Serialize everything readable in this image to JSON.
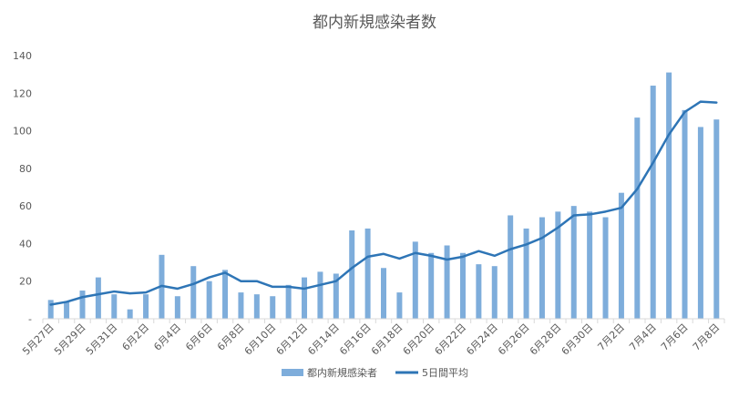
{
  "chart_data": {
    "type": "bar",
    "title": "都内新規感染者数",
    "xlabel": "",
    "ylabel": "",
    "ylim": [
      0,
      140
    ],
    "yticks": [
      0,
      20,
      40,
      60,
      80,
      100,
      120,
      140
    ],
    "ytick_labels": [
      "-",
      "20",
      "40",
      "60",
      "80",
      "100",
      "120",
      "140"
    ],
    "grid": false,
    "legend_position": "bottom",
    "categories": [
      "5月27日",
      "5月28日",
      "5月29日",
      "5月30日",
      "5月31日",
      "6月1日",
      "6月2日",
      "6月3日",
      "6月4日",
      "6月5日",
      "6月6日",
      "6月7日",
      "6月8日",
      "6月9日",
      "6月10日",
      "6月11日",
      "6月12日",
      "6月13日",
      "6月14日",
      "6月15日",
      "6月16日",
      "6月17日",
      "6月18日",
      "6月19日",
      "6月20日",
      "6月21日",
      "6月22日",
      "6月23日",
      "6月24日",
      "6月25日",
      "6月26日",
      "6月27日",
      "6月28日",
      "6月29日",
      "6月30日",
      "7月1日",
      "7月2日",
      "7月3日",
      "7月4日",
      "7月5日",
      "7月6日",
      "7月7日",
      "7月8日"
    ],
    "tick_labels": [
      "5月27日",
      "5月29日",
      "5月31日",
      "6月2日",
      "6月4日",
      "6月6日",
      "6月8日",
      "6月10日",
      "6月12日",
      "6月14日",
      "6月16日",
      "6月18日",
      "6月20日",
      "6月22日",
      "6月24日",
      "6月26日",
      "6月28日",
      "6月30日",
      "7月2日",
      "7月4日",
      "7月6日",
      "7月8日"
    ],
    "series": [
      {
        "name": "都内新規感染者",
        "type": "bar",
        "color": "#7EADDB",
        "values": [
          10,
          9,
          15,
          22,
          13,
          5,
          13,
          34,
          12,
          28,
          20,
          26,
          14,
          13,
          12,
          18,
          22,
          25,
          24,
          47,
          48,
          27,
          14,
          41,
          35,
          39,
          35,
          29,
          28,
          55,
          48,
          54,
          57,
          60,
          57,
          54,
          67,
          107,
          124,
          131,
          111,
          102,
          106
        ]
      },
      {
        "name": "5日間平均",
        "type": "line",
        "color": "#2E75B6",
        "values": [
          7.5,
          9,
          11.5,
          13,
          14.5,
          13.5,
          14,
          17.5,
          16,
          18.5,
          22,
          24.5,
          20,
          20,
          17,
          17,
          16,
          18,
          20,
          27,
          33,
          34.5,
          32,
          35,
          33.5,
          31.5,
          33,
          36,
          33.5,
          37,
          39.5,
          43,
          48.5,
          55,
          55.5,
          57,
          59,
          69,
          83,
          98,
          110,
          115.5,
          115
        ]
      }
    ]
  }
}
